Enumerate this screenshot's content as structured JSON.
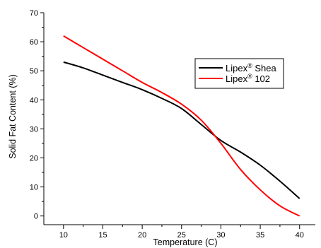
{
  "chart_data": {
    "type": "line",
    "title": "",
    "xlabel": "Temperature (C)",
    "ylabel": "Solid Fat Content (%)",
    "xlim": [
      7.5,
      42
    ],
    "ylim": [
      -3,
      70
    ],
    "xticks": [
      10,
      15,
      20,
      25,
      30,
      35,
      40
    ],
    "yticks": [
      0,
      10,
      20,
      30,
      40,
      50,
      60,
      70
    ],
    "grid": false,
    "legend_position": "right",
    "series": [
      {
        "name": "Lipex",
        "name_sup": "®",
        "name_suffix": " Shea",
        "color": "#000000",
        "x": [
          10,
          12.5,
          15,
          17.5,
          20,
          22.5,
          25,
          27.5,
          30,
          32.5,
          35,
          37.5,
          40
        ],
        "y": [
          53,
          51,
          48.5,
          46,
          43.5,
          40.5,
          37,
          31.5,
          26,
          22,
          17.5,
          12,
          6
        ]
      },
      {
        "name": "Lipex",
        "name_sup": "®",
        "name_suffix": " 102",
        "color": "#ff0000",
        "x": [
          10,
          12.5,
          15,
          17.5,
          20,
          22.5,
          25,
          27.5,
          30,
          32.5,
          35,
          37.5,
          40
        ],
        "y": [
          62,
          58,
          54,
          50,
          46,
          42.5,
          38.5,
          33,
          25,
          16,
          9,
          3.5,
          0
        ]
      }
    ]
  }
}
